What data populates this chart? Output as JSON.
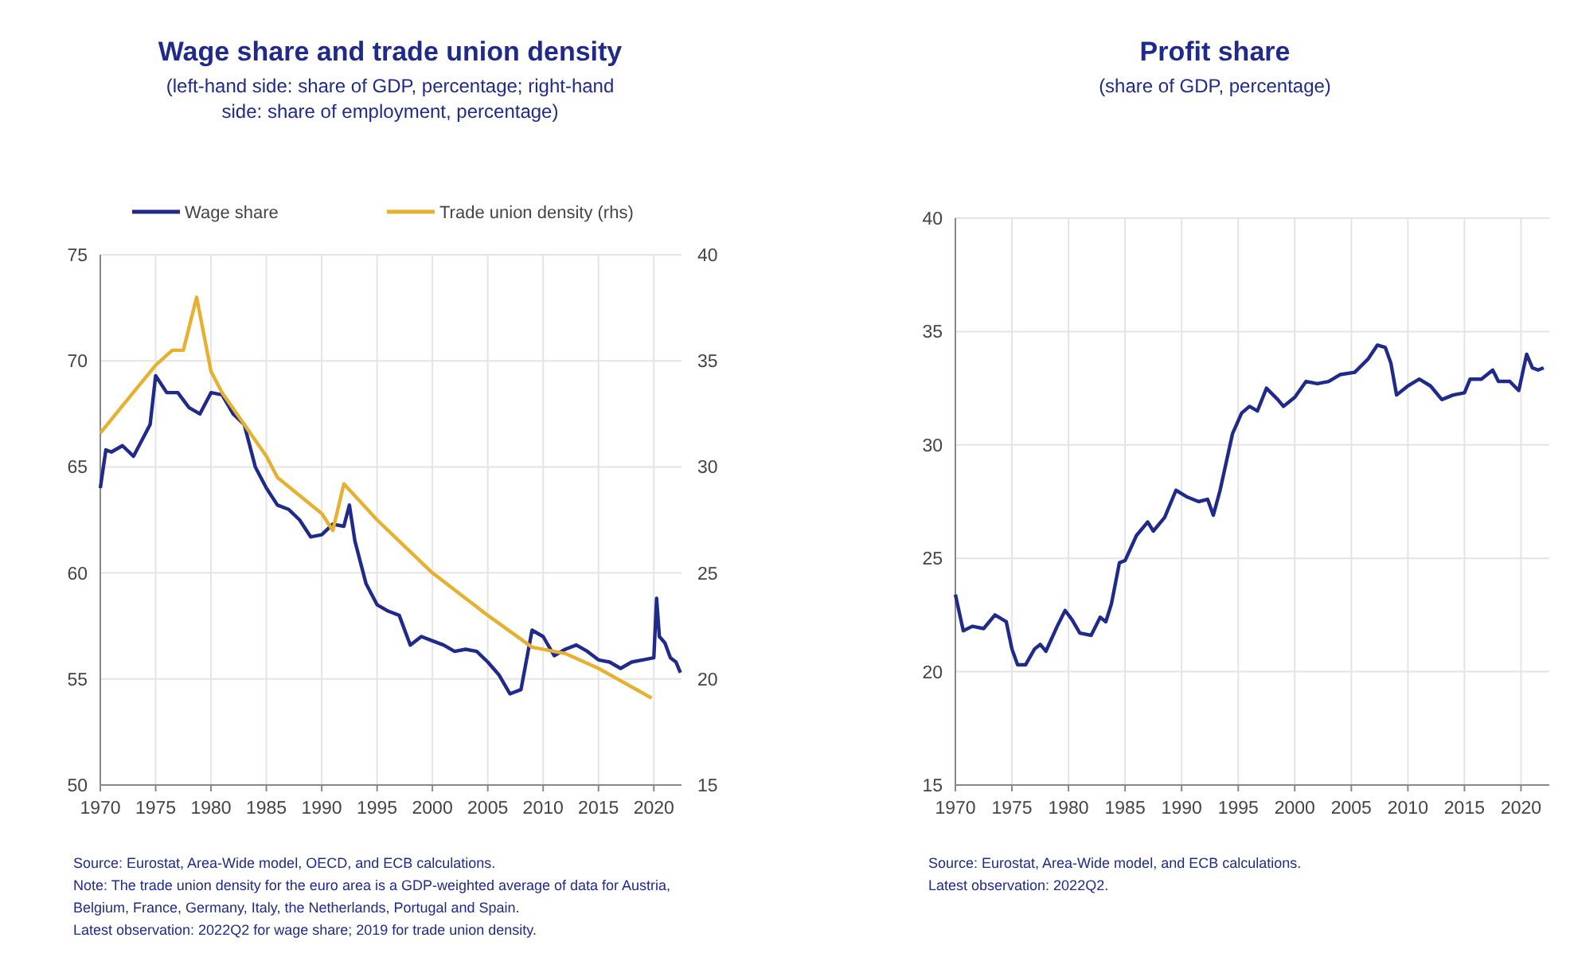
{
  "chart_data": [
    {
      "type": "line",
      "title": "Wage share and trade union density",
      "subtitle": "(left-hand side: share of GDP, percentage; right-hand side: share of employment, percentage)",
      "xlim": [
        1970,
        2022.5
      ],
      "xticks": [
        1970,
        1975,
        1980,
        1985,
        1990,
        1995,
        2000,
        2005,
        2010,
        2015,
        2020
      ],
      "ylim": [
        50,
        75
      ],
      "yticks": [
        50,
        55,
        60,
        65,
        70,
        75
      ],
      "y2lim": [
        15,
        40
      ],
      "y2ticks": [
        15,
        20,
        25,
        30,
        35,
        40
      ],
      "grid": true,
      "legend": "top",
      "line_style": "solid",
      "marker": "none",
      "series": [
        {
          "name": "Wage share",
          "color": "#1f2a8a",
          "x": [
            1970,
            1970.5,
            1971,
            1972,
            1973,
            1974,
            1974.5,
            1975,
            1976,
            1977,
            1978,
            1979,
            1980,
            1981,
            1982,
            1983,
            1984,
            1985,
            1986,
            1987,
            1988,
            1989,
            1990,
            1991,
            1992,
            1992.5,
            1993,
            1994,
            1995,
            1996,
            1997,
            1998,
            1999,
            2000,
            2001,
            2002,
            2003,
            2004,
            2005,
            2006,
            2007,
            2008,
            2009,
            2010,
            2011,
            2012,
            2013,
            2014,
            2015,
            2016,
            2017,
            2018,
            2019,
            2020,
            2020.25,
            2020.5,
            2021,
            2021.5,
            2022,
            2022.4
          ],
          "values": [
            64,
            65.8,
            65.7,
            66,
            65.5,
            66.5,
            67,
            69.3,
            68.5,
            68.5,
            67.8,
            67.5,
            68.5,
            68.4,
            67.5,
            67,
            65,
            64,
            63.2,
            63,
            62.5,
            61.7,
            61.8,
            62.3,
            62.2,
            63.2,
            61.5,
            59.5,
            58.5,
            58.2,
            58,
            56.6,
            57,
            56.8,
            56.6,
            56.3,
            56.4,
            56.3,
            55.8,
            55.2,
            54.3,
            54.5,
            57.3,
            57,
            56.1,
            56.4,
            56.6,
            56.3,
            55.9,
            55.8,
            55.5,
            55.8,
            55.9,
            56,
            58.8,
            57,
            56.7,
            56,
            55.8,
            55.3
          ]
        },
        {
          "name": "Trade union density (rhs)",
          "color": "#e6b130",
          "axis": "y2",
          "x": [
            1970,
            1975,
            1976.5,
            1977.5,
            1978.7,
            1980,
            1981,
            1985,
            1986,
            1990,
            1991,
            1992,
            1995,
            2000,
            2005,
            2009,
            2012,
            2015,
            2019.8
          ],
          "values": [
            31.6,
            34.8,
            35.5,
            35.5,
            38,
            34.5,
            33.5,
            30.5,
            29.5,
            27.8,
            27,
            29.2,
            27.5,
            25,
            23,
            21.5,
            21.2,
            20.5,
            19.1
          ]
        }
      ],
      "annotations": [
        "Source: Eurostat, Area-Wide model, OECD, and ECB calculations.",
        "Note: The trade union density for the euro area is a GDP-weighted average of data for Austria, Belgium, France, Germany, Italy, the Netherlands, Portugal and Spain.",
        "Latest observation: 2022Q2 for wage share; 2019 for trade union density."
      ]
    },
    {
      "type": "line",
      "title": "Profit share",
      "subtitle": "(share of GDP, percentage)",
      "xlim": [
        1970,
        2022.5
      ],
      "xticks": [
        1970,
        1975,
        1980,
        1985,
        1990,
        1995,
        2000,
        2005,
        2010,
        2015,
        2020
      ],
      "ylim": [
        15,
        40
      ],
      "yticks": [
        15,
        20,
        25,
        30,
        35,
        40
      ],
      "grid": true,
      "legend": false,
      "line_style": "solid",
      "marker": "none",
      "series": [
        {
          "color": "#1f2a8a",
          "x": [
            1970,
            1970.7,
            1971.5,
            1972.5,
            1973.5,
            1974.5,
            1975,
            1975.5,
            1976.2,
            1977,
            1977.5,
            1978,
            1979,
            1979.7,
            1980.3,
            1981,
            1982,
            1982.8,
            1983.3,
            1983.8,
            1984.5,
            1985,
            1986,
            1987,
            1987.5,
            1988.5,
            1989.5,
            1990.5,
            1991.5,
            1992.3,
            1992.8,
            1993.4,
            1994.5,
            1995.3,
            1996,
            1996.7,
            1997.5,
            1998.5,
            1999,
            2000,
            2001,
            2002,
            2003,
            2004,
            2005.3,
            2006.5,
            2007.3,
            2008,
            2008.5,
            2009,
            2010,
            2011,
            2012,
            2013,
            2014,
            2015,
            2015.5,
            2016.5,
            2017.5,
            2018,
            2019,
            2019.8,
            2020.5,
            2021,
            2021.5,
            2022
          ],
          "values": [
            23.4,
            21.8,
            22,
            21.9,
            22.5,
            22.2,
            21,
            20.3,
            20.3,
            21,
            21.2,
            20.9,
            22,
            22.7,
            22.3,
            21.7,
            21.6,
            22.4,
            22.2,
            23,
            24.8,
            24.9,
            26,
            26.6,
            26.2,
            26.8,
            28,
            27.7,
            27.5,
            27.6,
            26.9,
            28,
            30.5,
            31.4,
            31.7,
            31.5,
            32.5,
            32,
            31.7,
            32.1,
            32.8,
            32.7,
            32.8,
            33.1,
            33.2,
            33.8,
            34.4,
            34.3,
            33.6,
            32.2,
            32.6,
            32.9,
            32.6,
            32,
            32.2,
            32.3,
            32.9,
            32.9,
            33.3,
            32.8,
            32.8,
            32.4,
            34,
            33.4,
            33.3,
            33.4
          ]
        }
      ],
      "annotations": [
        "Source: Eurostat, Area-Wide model, and ECB calculations.",
        "Latest observation: 2022Q2."
      ]
    }
  ]
}
